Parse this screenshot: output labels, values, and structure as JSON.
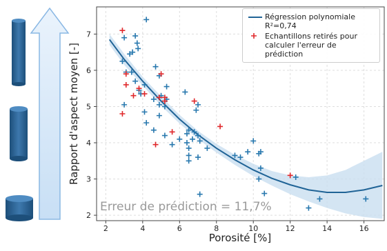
{
  "chart_data": {
    "type": "scatter",
    "x_label": "Porosité [%]",
    "y_label": "Rapport d'aspect moyen [-]",
    "annotation": "Erreur de prédiction = 11,7%",
    "xlim": [
      1.5,
      17.1
    ],
    "ylim": [
      1.85,
      7.75
    ],
    "xticks": [
      2,
      4,
      6,
      8,
      10,
      12,
      14,
      16
    ],
    "yticks": [
      2,
      3,
      4,
      5,
      6,
      7
    ],
    "grid": true,
    "legend_note": "R²=0,74",
    "series": [
      {
        "name": "Régression polynomiale",
        "type": "line",
        "color": "#1f6396",
        "band_color": "#c9dff0",
        "x": [
          2.2,
          3,
          4,
          5,
          6,
          7,
          8,
          9,
          10,
          11,
          12,
          13,
          14,
          15,
          16,
          17
        ],
        "values": [
          6.85,
          6.3,
          5.7,
          5.15,
          4.65,
          4.22,
          3.85,
          3.53,
          3.25,
          3.02,
          2.84,
          2.7,
          2.63,
          2.63,
          2.7,
          2.82
        ],
        "upper": [
          7.0,
          6.45,
          5.82,
          5.28,
          4.77,
          4.33,
          3.97,
          3.67,
          3.42,
          3.22,
          3.1,
          3.05,
          3.1,
          3.25,
          3.5,
          3.75
        ],
        "lower": [
          6.7,
          6.15,
          5.58,
          5.02,
          4.53,
          4.1,
          3.73,
          3.39,
          3.08,
          2.82,
          2.58,
          2.38,
          2.2,
          2.05,
          1.95,
          1.9
        ]
      },
      {
        "type": "points",
        "color": "#2878ae",
        "x": [
          4.2,
          3.6,
          3.0,
          3.7,
          3.3,
          3.45,
          3.75,
          2.9,
          3.1,
          3.4,
          3.6,
          3.8,
          3.9,
          4.1,
          4.7,
          4.9,
          5.3,
          5.0,
          5.2,
          4.9,
          4.6,
          5.3,
          4.1,
          4.2,
          4.6,
          4.9,
          5.2,
          5.6,
          6.3,
          6.0,
          6.4,
          6.4,
          6.5,
          6.5,
          6.5,
          6.5,
          6.7,
          6.8,
          6.9,
          7.0,
          7.0,
          7.1,
          7.1,
          7.5,
          9.0,
          9.3,
          9.7,
          10.0,
          10.3,
          10.4,
          10.4,
          10.3,
          10.6,
          12.3,
          13.0,
          13.6,
          16.1,
          3.0,
          7.0
        ],
        "values": [
          7.4,
          6.95,
          6.9,
          6.75,
          6.45,
          6.5,
          6.6,
          6.25,
          5.95,
          5.95,
          5.7,
          5.45,
          5.35,
          5.6,
          6.1,
          5.85,
          5.55,
          5.3,
          5.0,
          5.05,
          5.2,
          5.2,
          4.85,
          4.55,
          4.35,
          4.75,
          4.2,
          3.95,
          5.4,
          4.1,
          4.25,
          4.0,
          3.85,
          3.65,
          3.5,
          4.35,
          4.1,
          4.3,
          4.9,
          5.05,
          4.2,
          4.05,
          2.58,
          3.85,
          3.65,
          3.6,
          3.75,
          4.05,
          3.7,
          3.75,
          3.3,
          3.0,
          2.6,
          3.05,
          2.2,
          2.45,
          2.45,
          5.05,
          3.6
        ]
      },
      {
        "name": "Echantillons retirés pour calculer l'erreur de prédiction",
        "type": "points",
        "color": "#e0282b",
        "x": [
          2.9,
          3.1,
          3.1,
          2.9,
          3.5,
          3.8,
          4.1,
          5.0,
          4.9,
          5.2,
          5.2,
          5.6,
          4.7,
          6.8,
          8.2,
          12.0
        ],
        "values": [
          7.1,
          5.9,
          5.6,
          4.8,
          5.3,
          5.5,
          5.35,
          5.9,
          5.25,
          5.15,
          5.25,
          4.3,
          3.95,
          5.15,
          4.45,
          3.1
        ]
      }
    ]
  }
}
